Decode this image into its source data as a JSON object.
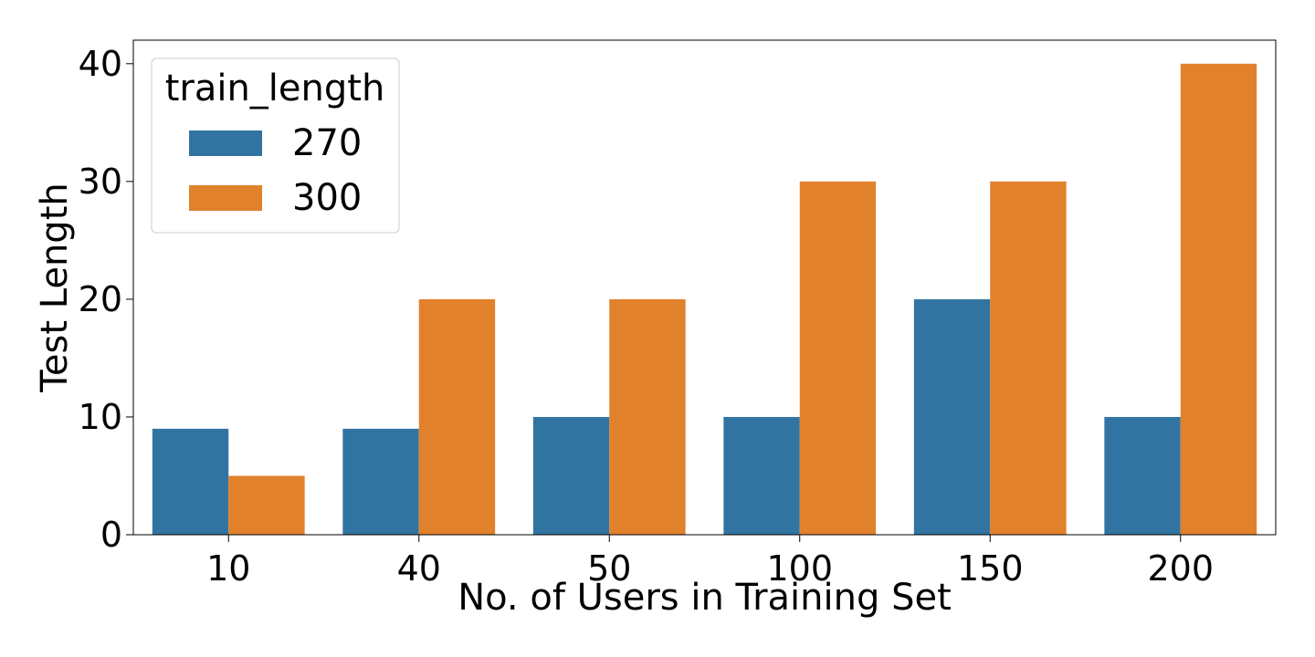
{
  "chart_data": {
    "type": "bar",
    "categories": [
      "10",
      "40",
      "50",
      "100",
      "150",
      "200"
    ],
    "series": [
      {
        "name": "270",
        "color": "#3274a1",
        "values": [
          9,
          9,
          10,
          10,
          20,
          10
        ]
      },
      {
        "name": "300",
        "color": "#e1812c",
        "values": [
          5,
          20,
          20,
          30,
          30,
          40
        ]
      }
    ],
    "title": "",
    "xlabel": "No. of Users in Training Set",
    "ylabel": "Test Length",
    "ylim": [
      0,
      42
    ],
    "yticks": [
      0,
      10,
      20,
      30,
      40
    ],
    "grid": false,
    "legend": {
      "title": "train_length",
      "position": "top-left"
    }
  }
}
